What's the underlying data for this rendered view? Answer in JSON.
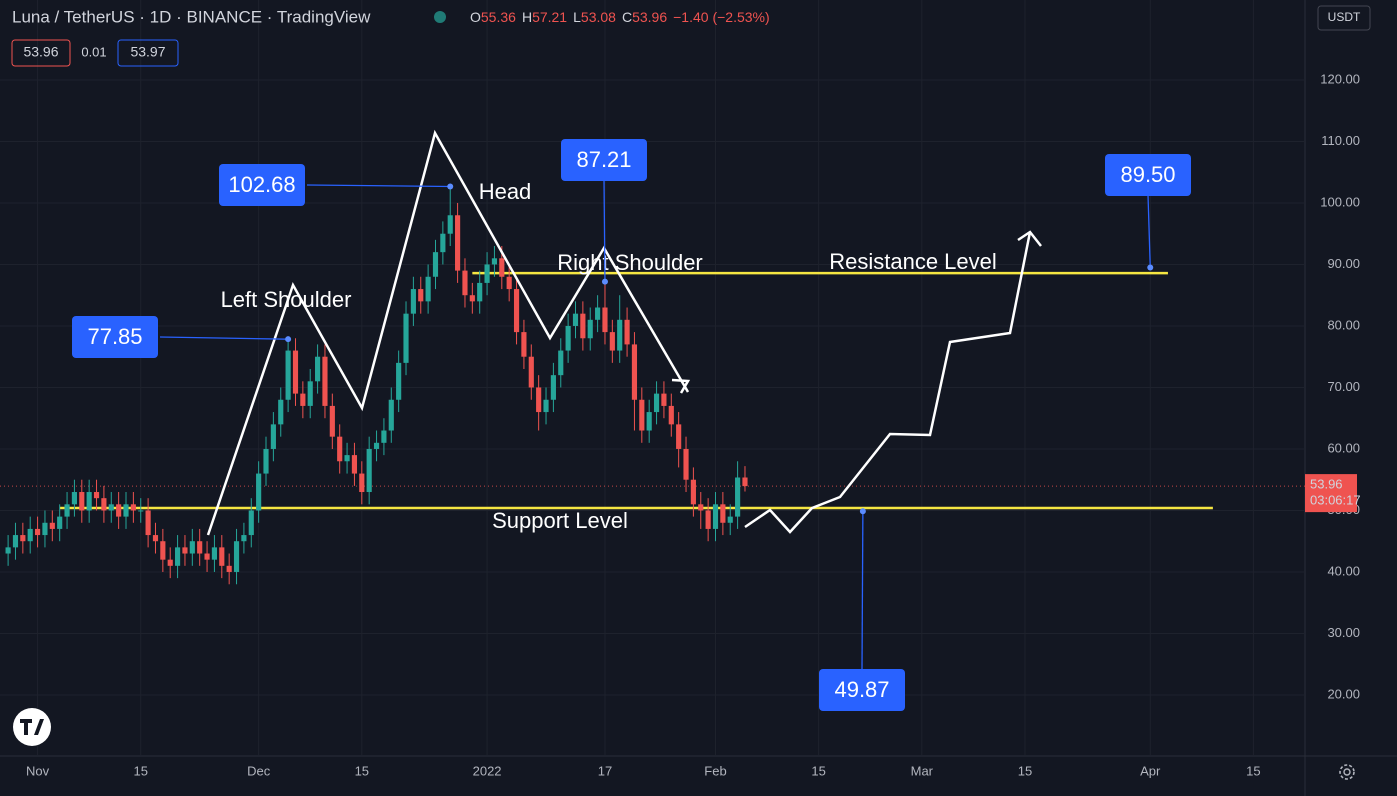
{
  "chart_data": {
    "type": "candlestick",
    "title": "Luna / TetherUS · 1D · BINANCE · TradingView",
    "ohlc_prefixes": [
      "O",
      "H",
      "L",
      "C"
    ],
    "change": "−1.40 (−2.53%)",
    "buttons": [
      "53.96",
      "0.01",
      "53.97"
    ],
    "currency": "USDT",
    "countdown": "03:06:17",
    "xlim": [
      -66.1,
      111.0
    ],
    "ylim": [
      10.24,
      133.0
    ],
    "yticks": [
      {
        "value": 20,
        "label": "20.00"
      },
      {
        "value": 30,
        "label": "30.00"
      },
      {
        "value": 40,
        "label": "40.00"
      },
      {
        "value": 50,
        "label": "50.00"
      },
      {
        "value": 60,
        "label": "60.00"
      },
      {
        "value": 70,
        "label": "70.00"
      },
      {
        "value": 80,
        "label": "80.00"
      },
      {
        "value": 90,
        "label": "90.00"
      },
      {
        "value": 100,
        "label": "100.00"
      },
      {
        "value": 110,
        "label": "110.00"
      },
      {
        "value": 120,
        "label": "120.00"
      }
    ],
    "xticks": [
      {
        "value": -61,
        "label": "Nov"
      },
      {
        "value": -47,
        "label": "15"
      },
      {
        "value": -31,
        "label": "Dec"
      },
      {
        "value": -17,
        "label": "15"
      },
      {
        "value": 0,
        "label": "2022"
      },
      {
        "value": 16,
        "label": "17"
      },
      {
        "value": 31,
        "label": "Feb"
      },
      {
        "value": 45,
        "label": "15"
      },
      {
        "value": 59,
        "label": "Mar"
      },
      {
        "value": 73,
        "label": "15"
      },
      {
        "value": 90,
        "label": "Apr"
      },
      {
        "value": 104,
        "label": "15"
      }
    ],
    "grid": true,
    "up_color": "#26a69a",
    "down_color": "#ef5350",
    "x": [
      -65,
      -64,
      -63,
      -62,
      -61,
      -60,
      -59,
      -58,
      -57,
      -56,
      -55,
      -54,
      -53,
      -52,
      -51,
      -50,
      -49,
      -48,
      -47,
      -46,
      -45,
      -44,
      -43,
      -42,
      -41,
      -40,
      -39,
      -38,
      -37,
      -36,
      -35,
      -34,
      -33,
      -32,
      -31,
      -30,
      -29,
      -28,
      -27,
      -26,
      -25,
      -24,
      -23,
      -22,
      -21,
      -20,
      -19,
      -18,
      -17,
      -16,
      -15,
      -14,
      -13,
      -12,
      -11,
      -10,
      -9,
      -8,
      -7,
      -6,
      -5,
      -4,
      -3,
      -2,
      -1,
      0,
      1,
      2,
      3,
      4,
      5,
      6,
      7,
      8,
      9,
      10,
      11,
      12,
      13,
      14,
      15,
      16,
      17,
      18,
      19,
      20,
      21,
      22,
      23,
      24,
      25,
      26,
      27,
      28,
      29,
      30,
      31,
      32,
      33,
      34,
      35
    ],
    "open": [
      43,
      44,
      46,
      45,
      47,
      46,
      48,
      47,
      49,
      51,
      53,
      50,
      53,
      52,
      50,
      51,
      49,
      51,
      50,
      50,
      46,
      45,
      42,
      41,
      44,
      43,
      45,
      43,
      42,
      44,
      41,
      40,
      45,
      46,
      50,
      56,
      60,
      64,
      68,
      76,
      69,
      67,
      71,
      75,
      67,
      62,
      58,
      59,
      56,
      53,
      60,
      61,
      63,
      68,
      74,
      82,
      86,
      84,
      88,
      92,
      95,
      98,
      89,
      85,
      84,
      87,
      90,
      91,
      88,
      86,
      79,
      75,
      70,
      66,
      68,
      72,
      76,
      80,
      82,
      78,
      81,
      83,
      79,
      76,
      81,
      77,
      68,
      63,
      66,
      69,
      67,
      64,
      60,
      55,
      51,
      50,
      47,
      51,
      48,
      49,
      55.36
    ],
    "high": [
      46,
      48,
      48,
      49,
      49,
      50,
      50,
      51,
      53,
      55,
      55,
      55,
      55,
      54,
      53,
      53,
      53,
      53,
      52,
      52,
      48,
      47,
      44,
      46,
      46,
      47,
      47,
      45,
      46,
      46,
      43,
      47,
      48,
      52,
      58,
      62,
      66,
      70,
      77.85,
      78,
      71,
      73,
      77,
      77,
      69,
      64,
      61,
      61,
      58,
      62,
      63,
      65,
      70,
      76,
      84,
      88,
      88,
      90,
      94,
      97,
      102.68,
      100,
      91,
      87,
      89,
      92,
      93,
      93,
      90,
      88,
      81,
      77,
      72,
      70,
      74,
      78,
      82,
      84,
      84,
      83,
      85,
      87.21,
      81,
      85,
      83,
      79,
      70,
      68,
      71,
      71,
      69,
      66,
      62,
      57,
      53,
      52,
      53,
      53,
      51,
      58,
      57.21
    ],
    "low": [
      41,
      42,
      43,
      43,
      44,
      44,
      45,
      45,
      47,
      49,
      48,
      48,
      50,
      48,
      48,
      47,
      47,
      48,
      48,
      44,
      43,
      40,
      39,
      39,
      41,
      41,
      41,
      40,
      40,
      39,
      38,
      38,
      43,
      44,
      48,
      54,
      58,
      62,
      66,
      67,
      65,
      65,
      69,
      65,
      60,
      56,
      56,
      54,
      51,
      51,
      58,
      59,
      61,
      66,
      72,
      80,
      82,
      82,
      86,
      90,
      93,
      87,
      83,
      82,
      82,
      85,
      88,
      86,
      84,
      77,
      73,
      68,
      63,
      64,
      66,
      70,
      74,
      78,
      76,
      76,
      79,
      77,
      74,
      74,
      75,
      63,
      61,
      61,
      64,
      65,
      62,
      57,
      53,
      49,
      47,
      45,
      45,
      46,
      46,
      47,
      53.08
    ],
    "close": [
      44,
      46,
      45,
      47,
      46,
      48,
      47,
      49,
      51,
      53,
      50,
      53,
      52,
      50,
      51,
      49,
      51,
      50,
      50,
      46,
      45,
      42,
      41,
      44,
      43,
      45,
      43,
      42,
      44,
      41,
      40,
      45,
      46,
      50,
      56,
      60,
      64,
      68,
      76,
      69,
      67,
      71,
      75,
      67,
      62,
      58,
      59,
      56,
      53,
      60,
      61,
      63,
      68,
      74,
      82,
      86,
      84,
      88,
      92,
      95,
      98,
      89,
      85,
      84,
      87,
      90,
      91,
      88,
      86,
      79,
      75,
      70,
      66,
      68,
      72,
      76,
      80,
      82,
      78,
      81,
      83,
      79,
      76,
      81,
      77,
      68,
      63,
      66,
      69,
      67,
      64,
      60,
      55,
      51,
      50,
      47,
      51,
      48,
      49,
      55.36,
      53.96
    ],
    "levels": [
      {
        "text": "Support Level",
        "value": 50.4,
        "from": -58,
        "to": 98.5
      },
      {
        "text": "Resistance Level",
        "value": 88.6,
        "from": -2,
        "to": 92.4
      }
    ],
    "pattern_labels": [
      "Left Shoulder",
      "Head",
      "Right Shoulder"
    ],
    "price_notes": [
      {
        "x": -5,
        "value": 102.68
      },
      {
        "x": -27,
        "value": 77.85
      },
      {
        "x": 16,
        "value": 87.21
      },
      {
        "x": 90,
        "value": 89.5,
        "label": "89.50"
      },
      {
        "x": 51,
        "value": 49.87
      }
    ]
  }
}
